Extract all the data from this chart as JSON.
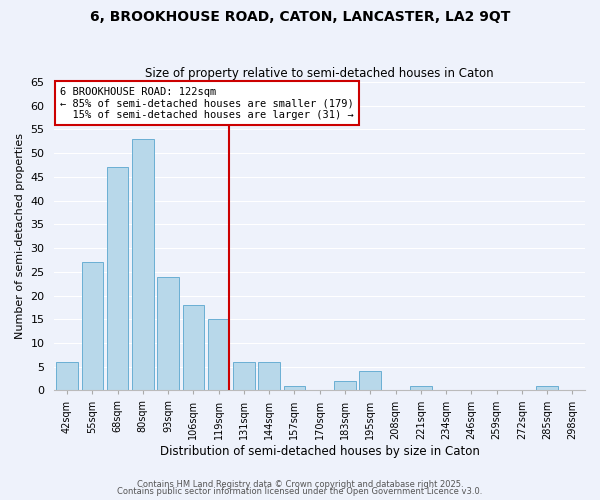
{
  "title": "6, BROOKHOUSE ROAD, CATON, LANCASTER, LA2 9QT",
  "subtitle": "Size of property relative to semi-detached houses in Caton",
  "xlabel": "Distribution of semi-detached houses by size in Caton",
  "ylabel": "Number of semi-detached properties",
  "categories": [
    "42sqm",
    "55sqm",
    "68sqm",
    "80sqm",
    "93sqm",
    "106sqm",
    "119sqm",
    "131sqm",
    "144sqm",
    "157sqm",
    "170sqm",
    "183sqm",
    "195sqm",
    "208sqm",
    "221sqm",
    "234sqm",
    "246sqm",
    "259sqm",
    "272sqm",
    "285sqm",
    "298sqm"
  ],
  "values": [
    6,
    27,
    47,
    53,
    24,
    18,
    15,
    6,
    6,
    1,
    0,
    2,
    4,
    0,
    1,
    0,
    0,
    0,
    0,
    1,
    0
  ],
  "bar_color": "#b8d8ea",
  "bar_edge_color": "#6aafd4",
  "vline_index": 6,
  "vline_color": "#cc0000",
  "annotation_title": "6 BROOKHOUSE ROAD: 122sqm",
  "annotation_line1": "← 85% of semi-detached houses are smaller (179)",
  "annotation_line2": "  15% of semi-detached houses are larger (31) →",
  "annotation_box_color": "#ffffff",
  "annotation_box_edge": "#cc0000",
  "ylim": [
    0,
    65
  ],
  "yticks": [
    0,
    5,
    10,
    15,
    20,
    25,
    30,
    35,
    40,
    45,
    50,
    55,
    60,
    65
  ],
  "background_color": "#eef2fb",
  "grid_color": "#ffffff",
  "footer_line1": "Contains HM Land Registry data © Crown copyright and database right 2025.",
  "footer_line2": "Contains public sector information licensed under the Open Government Licence v3.0."
}
